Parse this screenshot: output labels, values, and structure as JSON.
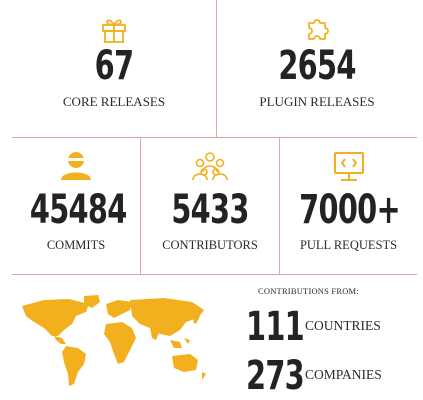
{
  "top": {
    "core_releases": {
      "value": "67",
      "label": "CORE RELEASES",
      "icon": "gift-icon"
    },
    "plugin_releases": {
      "value": "2654",
      "label": "PLUGIN RELEASES",
      "icon": "puzzle-icon"
    }
  },
  "middle": {
    "commits": {
      "value": "45484",
      "label": "COMMITS",
      "icon": "user-icon"
    },
    "contributors": {
      "value": "5433",
      "label": "CONTRIBUTORS",
      "icon": "group-icon"
    },
    "pull_requests": {
      "value": "7000+",
      "label": "PULL REQUESTS",
      "icon": "monitor-code-icon"
    }
  },
  "bottom": {
    "contributions_from": "CONTRIBUTIONS FROM:",
    "countries": {
      "value": "111",
      "label": "COUNTRIES"
    },
    "companies": {
      "value": "273",
      "label": "COMPANIES"
    },
    "map_icon": "world-map-icon"
  },
  "colors": {
    "accent": "#f2b01e",
    "divider": "#e3a4a4",
    "text": "#232323"
  }
}
